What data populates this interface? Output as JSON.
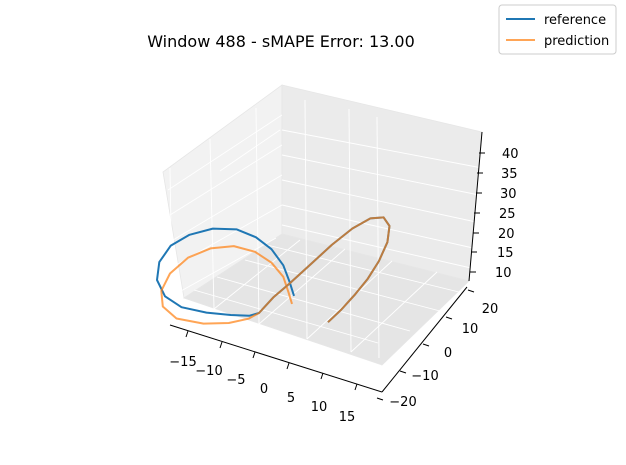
{
  "chart_data": {
    "type": "line",
    "projection": "3d",
    "title": "Window 488 - sMAPE Error: 13.00",
    "xlabel": "",
    "ylabel": "",
    "zlabel": "",
    "xlim": [
      -18,
      17
    ],
    "ylim": [
      -25,
      25
    ],
    "zlim": [
      8,
      43
    ],
    "x_ticks": [
      "−15",
      "−10",
      "−5",
      "0",
      "5",
      "10",
      "15"
    ],
    "y_ticks": [
      "−20",
      "−10",
      "0",
      "10",
      "20"
    ],
    "z_ticks": [
      "10",
      "15",
      "20",
      "25",
      "30",
      "35",
      "40"
    ],
    "grid": true,
    "legend": {
      "position": "top-right",
      "entries": [
        "reference",
        "prediction"
      ]
    },
    "series": [
      {
        "name": "reference",
        "color": "#1f77b4",
        "points": [
          [
            8.0,
            10.0,
            10.5
          ],
          [
            9.5,
            12.5,
            13.0
          ],
          [
            11.0,
            15.0,
            16.0
          ],
          [
            12.5,
            17.5,
            19.5
          ],
          [
            13.8,
            19.5,
            23.5
          ],
          [
            14.8,
            21.0,
            28.0
          ],
          [
            15.0,
            21.5,
            32.0
          ],
          [
            14.3,
            20.5,
            34.5
          ],
          [
            12.8,
            18.0,
            35.0
          ],
          [
            10.8,
            14.5,
            33.5
          ],
          [
            8.5,
            10.5,
            30.5
          ],
          [
            6.0,
            6.5,
            26.5
          ],
          [
            3.5,
            3.0,
            22.5
          ],
          [
            1.5,
            0.5,
            19.5
          ],
          [
            0.5,
            -1.0,
            17.5
          ],
          [
            0.0,
            -2.5,
            16.5
          ],
          [
            -1.0,
            -4.5,
            16.5
          ],
          [
            -3.5,
            -7.0,
            17.0
          ],
          [
            -7.0,
            -9.5,
            17.5
          ],
          [
            -11.0,
            -11.0,
            18.0
          ],
          [
            -14.0,
            -11.0,
            19.5
          ],
          [
            -16.0,
            -9.5,
            22.0
          ],
          [
            -16.5,
            -7.0,
            25.0
          ],
          [
            -15.5,
            -4.0,
            28.0
          ],
          [
            -13.0,
            -1.5,
            30.5
          ],
          [
            -9.5,
            0.5,
            32.5
          ],
          [
            -5.5,
            1.5,
            33.5
          ],
          [
            -2.0,
            1.5,
            33.0
          ],
          [
            1.0,
            1.0,
            31.5
          ],
          [
            3.5,
            0.0,
            29.0
          ],
          [
            5.0,
            -1.0,
            26.0
          ],
          [
            6.0,
            -1.5,
            23.0
          ]
        ]
      },
      {
        "name": "prediction",
        "color": "#ff7f0e",
        "points": [
          [
            8.0,
            10.0,
            10.5
          ],
          [
            9.5,
            12.5,
            13.0
          ],
          [
            11.0,
            15.0,
            16.0
          ],
          [
            12.5,
            17.5,
            19.5
          ],
          [
            13.8,
            19.5,
            23.5
          ],
          [
            14.8,
            21.0,
            28.0
          ],
          [
            15.0,
            21.5,
            32.0
          ],
          [
            14.3,
            20.5,
            34.5
          ],
          [
            12.8,
            18.0,
            35.0
          ],
          [
            10.8,
            14.5,
            33.5
          ],
          [
            8.5,
            10.5,
            30.5
          ],
          [
            6.0,
            6.5,
            26.5
          ],
          [
            3.5,
            3.0,
            22.5
          ],
          [
            1.5,
            0.5,
            19.5
          ],
          [
            0.5,
            -1.0,
            17.5
          ],
          [
            0.0,
            -2.5,
            16.5
          ],
          [
            -1.0,
            -5.0,
            16.0
          ],
          [
            -3.5,
            -8.0,
            15.5
          ],
          [
            -7.0,
            -11.0,
            15.5
          ],
          [
            -11.0,
            -13.5,
            16.5
          ],
          [
            -13.5,
            -13.5,
            18.5
          ],
          [
            -14.5,
            -11.5,
            21.0
          ],
          [
            -14.0,
            -8.5,
            24.0
          ],
          [
            -12.0,
            -5.0,
            27.0
          ],
          [
            -9.0,
            -2.0,
            29.0
          ],
          [
            -5.5,
            0.0,
            30.0
          ],
          [
            -2.0,
            1.0,
            29.5
          ],
          [
            1.0,
            1.0,
            28.0
          ],
          [
            3.5,
            0.0,
            26.0
          ],
          [
            5.0,
            -1.5,
            23.5
          ],
          [
            6.0,
            -2.5,
            21.5
          ]
        ]
      }
    ]
  }
}
